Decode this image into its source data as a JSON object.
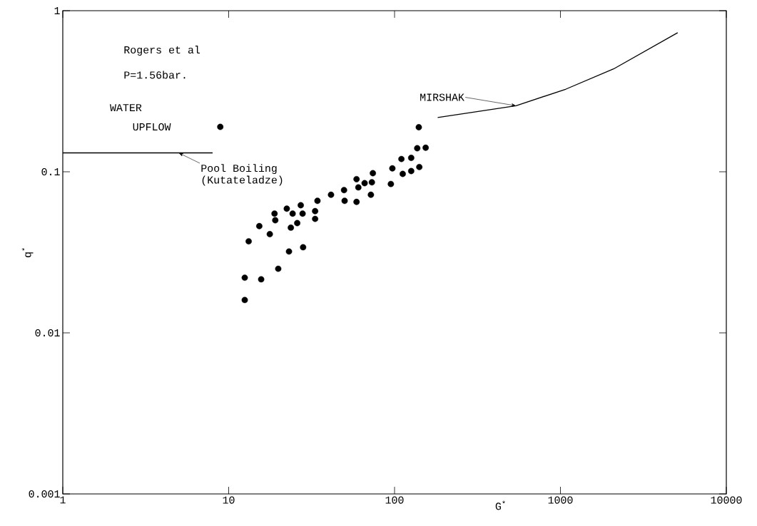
{
  "chart_data": {
    "type": "scatter",
    "xlabel": "G$^{*}$",
    "ylabel": "q$^{*}$",
    "log": "xy",
    "marker": "circle",
    "xlim": [
      1,
      10000
    ],
    "ylim": [
      0.001,
      1
    ],
    "xticks": [
      1,
      10,
      100,
      1000,
      10000
    ],
    "yticks": [
      0.001,
      0.01,
      0.1,
      1
    ],
    "annotations": [
      "Rogers et al",
      "P=1.56bar.",
      "WATER",
      "UPFLOW",
      {
        "text": "Pool Boiling",
        "x": 5.0,
        "y": 0.131
      },
      "(Kutateladze)",
      {
        "text": "MIRSHAK",
        "x": 540,
        "y": 0.257
      }
    ],
    "series": [
      {
        "color": "#000000",
        "x": [
          140,
          137,
          154,
          110,
          126,
          97,
          112,
          126,
          141,
          95,
          74,
          59,
          66,
          73,
          60.5,
          72,
          59,
          50,
          49.6,
          41.4,
          34.3,
          33.2,
          33.2,
          27.2,
          27.9,
          22.4,
          24.3,
          18.9,
          19.1,
          25.9,
          23.7,
          15.3,
          17.7,
          13.2,
          28.1,
          23.1,
          19.9,
          12.5,
          15.7,
          12.5,
          8.9
        ],
        "values": [
          0.189,
          0.14,
          0.141,
          0.12,
          0.122,
          0.105,
          0.097,
          0.101,
          0.107,
          0.084,
          0.098,
          0.09,
          0.085,
          0.086,
          0.08,
          0.072,
          0.065,
          0.066,
          0.077,
          0.072,
          0.066,
          0.057,
          0.051,
          0.062,
          0.055,
          0.059,
          0.055,
          0.055,
          0.05,
          0.048,
          0.045,
          0.046,
          0.041,
          0.037,
          0.034,
          0.032,
          0.025,
          0.022,
          0.0215,
          0.016,
          0.19
        ]
      },
      {
        "type": "line",
        "color": "#000000",
        "marker": "none",
        "x": [
          1,
          8.0
        ],
        "values": [
          0.131,
          0.131
        ]
      },
      {
        "type": "line",
        "color": "#000000",
        "marker": "none",
        "x": [
          182,
          289,
          540,
          1080,
          2090,
          5090
        ],
        "values": [
          0.217,
          0.233,
          0.257,
          0.326,
          0.435,
          0.73
        ]
      }
    ]
  }
}
